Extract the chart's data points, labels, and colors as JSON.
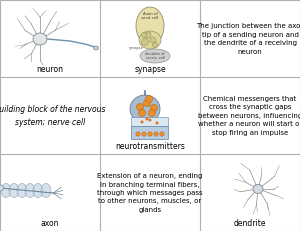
{
  "figsize": [
    3.0,
    2.31
  ],
  "dpi": 100,
  "background": "#ffffff",
  "border_color": "#b0b0b0",
  "grid_rows": 3,
  "grid_cols": 3,
  "cell_texts": {
    "r0c2": "The junction between the axon\ntip of a sending neuron and\nthe dendrite of a receiving\nneuron",
    "r1c0": "Building block of the nervous\nsystem; nerve cell",
    "r1c2": "Chemical messengers that\ncross the synaptic gaps\nbetween neurons, influencing\nwhether a neuron will start or\nstop firing an impulse",
    "r2c1": "Extension of a neuron, ending\nin branching terminal fibers,\nthrough which messages pass\nto other neurons, muscles, or\nglands"
  },
  "labels": {
    "neuron": "neuron",
    "synapse": "synapse",
    "neurotrans": "neurotransmitters",
    "axon": "axon",
    "dendrite": "dendrite"
  },
  "label_fontsize": 5.5,
  "text_fontsize": 5.0,
  "sketch_color": "#909090",
  "sketch_lw": 0.5,
  "neuron_soma_color": "#d8dde0",
  "synapse_body_color": "#e8e0b0",
  "synapse_vesicle_color": "#d8d0a0",
  "neurotrans_bulb_color": "#a8c0d8",
  "neurotrans_vesicle_color": "#e8a050",
  "neurotrans_post_color": "#c0d0e0",
  "axon_myelin_color": "#c8d8e8",
  "dendrite_soma_color": "#c8d8e8"
}
